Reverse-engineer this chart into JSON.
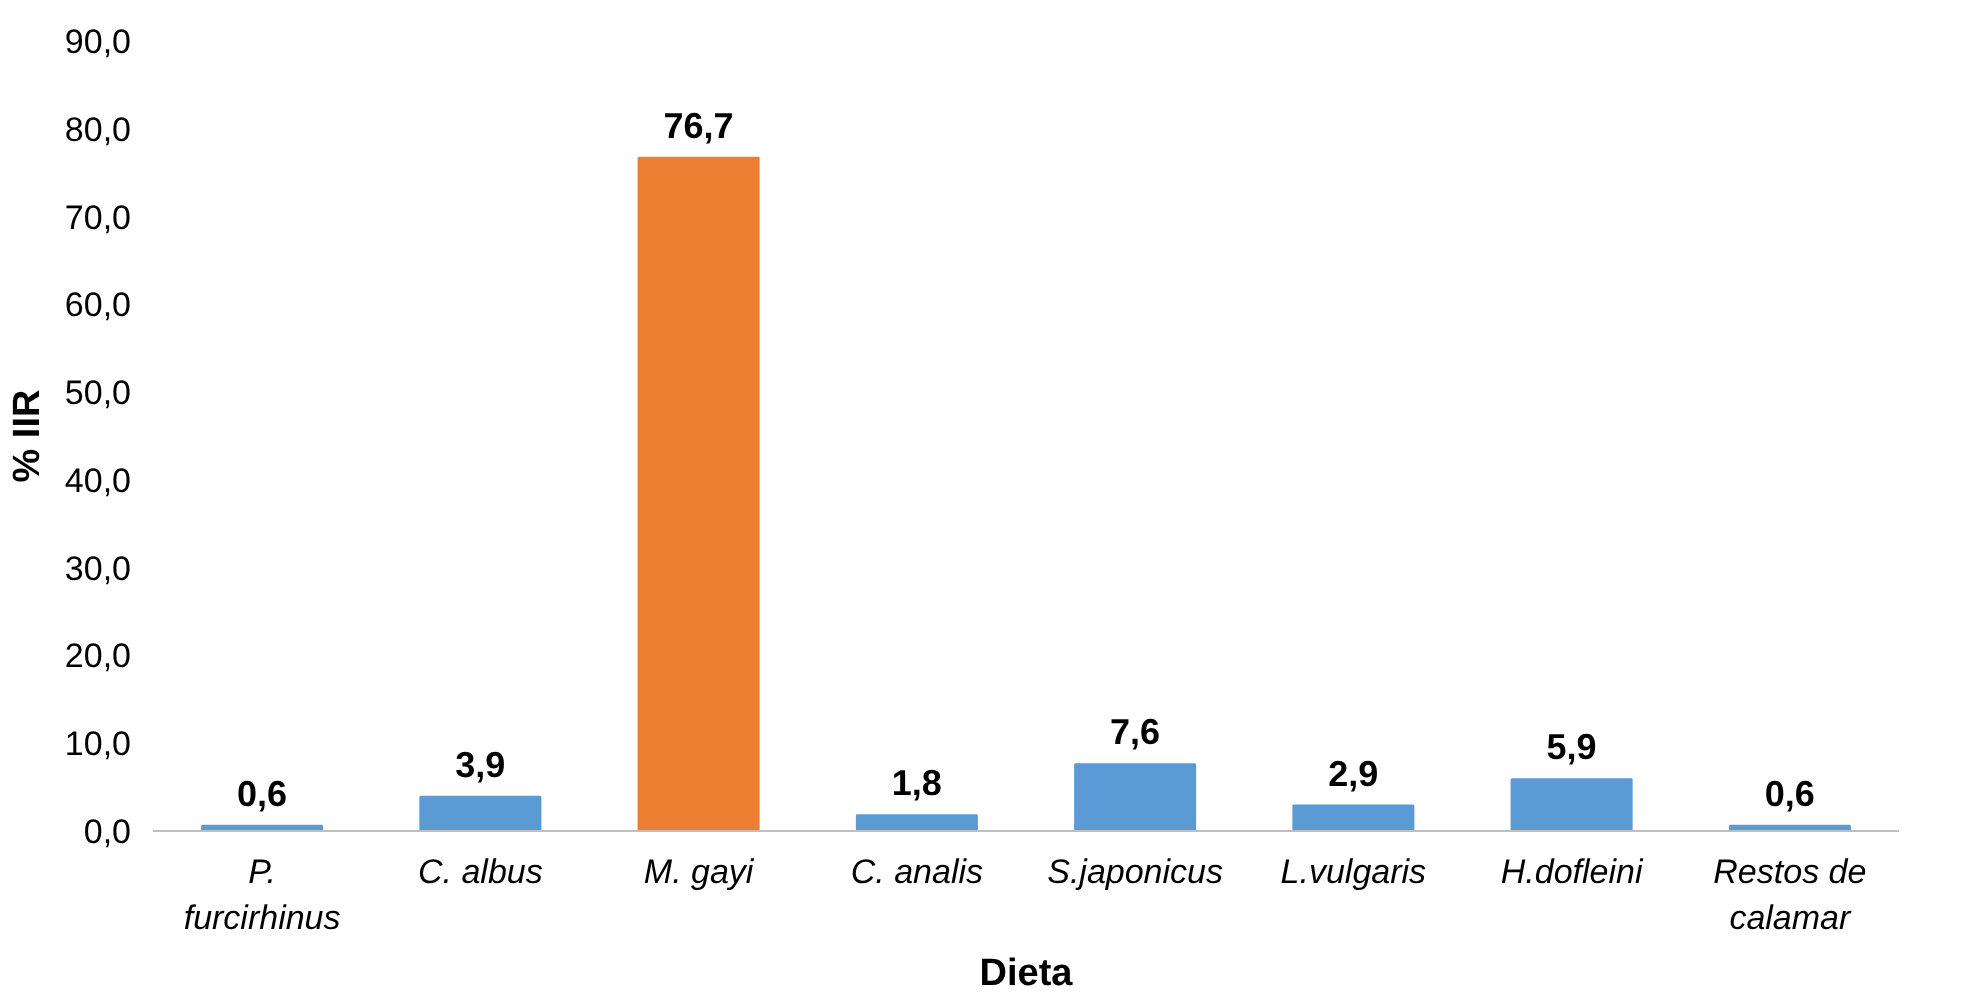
{
  "chart_data": {
    "type": "bar",
    "xlabel": "Dieta",
    "ylabel": "% IIR",
    "categories": [
      "P. furcirhinus",
      "C. albus",
      "M. gayi",
      "C. analis",
      "S.japonicus",
      "L.vulgaris",
      "H.dofleini",
      "Restos de calamar"
    ],
    "values": [
      0.6,
      3.9,
      76.7,
      1.8,
      7.6,
      2.9,
      5.9,
      0.6
    ],
    "colors": [
      "#5b9bd5",
      "#5b9bd5",
      "#ed7d31",
      "#5b9bd5",
      "#5b9bd5",
      "#5b9bd5",
      "#5b9bd5",
      "#5b9bd5"
    ],
    "value_labels": [
      "0,6",
      "3,9",
      "76,7",
      "1,8",
      "7,6",
      "2,9",
      "5,9",
      "0,6"
    ],
    "ylim": [
      0,
      90
    ],
    "yticks": [
      {
        "value": 0,
        "label": "0,0"
      },
      {
        "value": 10,
        "label": "10,0"
      },
      {
        "value": 20,
        "label": "20,0"
      },
      {
        "value": 30,
        "label": "30,0"
      },
      {
        "value": 40,
        "label": "40,0"
      },
      {
        "value": 50,
        "label": "50,0"
      },
      {
        "value": 60,
        "label": "60,0"
      },
      {
        "value": 70,
        "label": "70,0"
      },
      {
        "value": 80,
        "label": "80,0"
      },
      {
        "value": 90,
        "label": "90,0"
      }
    ],
    "grid": false
  }
}
